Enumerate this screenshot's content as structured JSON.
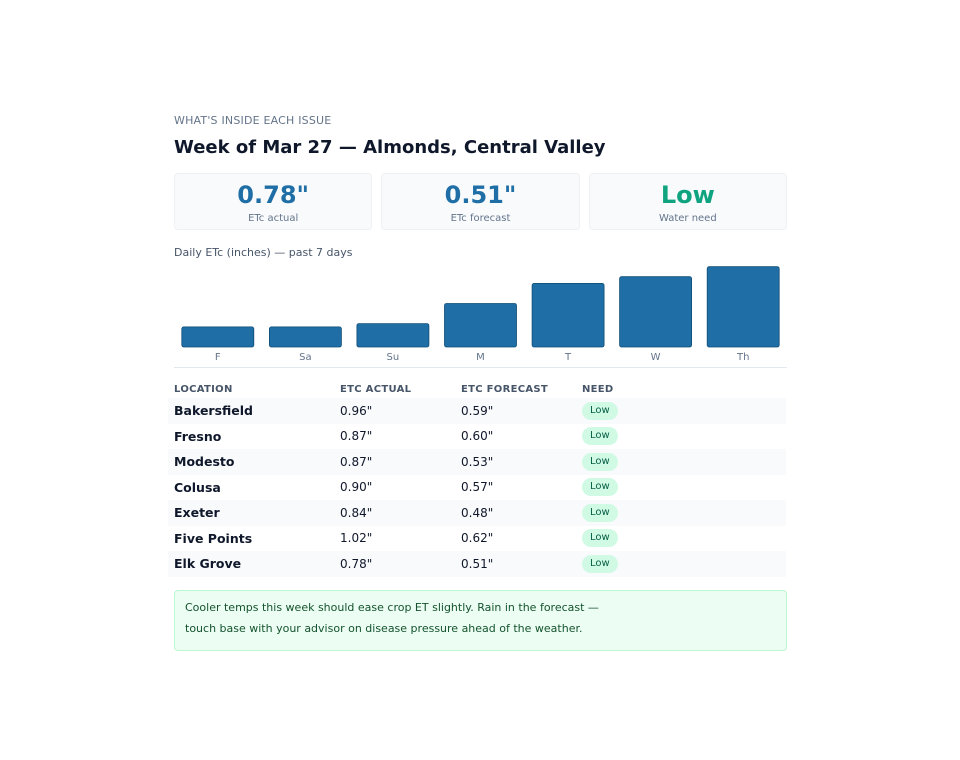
{
  "eyebrow": "WHAT'S INSIDE EACH ISSUE",
  "title": "Week of Mar 27 — Almonds, Central Valley",
  "stats": [
    {
      "value": "0.78\"",
      "label": "ETc actual",
      "color": "#1f6ea6"
    },
    {
      "value": "0.51\"",
      "label": "ETc forecast",
      "color": "#1f6ea6"
    },
    {
      "value": "Low",
      "label": "Water need",
      "color": "#10a37f"
    }
  ],
  "chart_caption": "Daily ETc (inches) — past 7 days",
  "chart_data": {
    "type": "bar",
    "categories": [
      "F",
      "Sa",
      "Su",
      "M",
      "T",
      "W",
      "Th"
    ],
    "values": [
      0.06,
      0.06,
      0.07,
      0.13,
      0.19,
      0.21,
      0.24
    ],
    "ylim": [
      0,
      0.26
    ],
    "color": "#1f6ea6"
  },
  "table": {
    "headers": [
      "LOCATION",
      "ETC ACTUAL",
      "ETC FORECAST",
      "NEED"
    ],
    "rows": [
      {
        "location": "Bakersfield",
        "actual": "0.96\"",
        "forecast": "0.59\"",
        "need": "Low"
      },
      {
        "location": "Fresno",
        "actual": "0.87\"",
        "forecast": "0.60\"",
        "need": "Low"
      },
      {
        "location": "Modesto",
        "actual": "0.87\"",
        "forecast": "0.53\"",
        "need": "Low"
      },
      {
        "location": "Colusa",
        "actual": "0.90\"",
        "forecast": "0.57\"",
        "need": "Low"
      },
      {
        "location": "Exeter",
        "actual": "0.84\"",
        "forecast": "0.48\"",
        "need": "Low"
      },
      {
        "location": "Five Points",
        "actual": "1.02\"",
        "forecast": "0.62\"",
        "need": "Low"
      },
      {
        "location": "Elk Grove",
        "actual": "0.78\"",
        "forecast": "0.51\"",
        "need": "Low"
      }
    ]
  },
  "note": {
    "line1": "Cooler temps this week should ease crop ET slightly. Rain in the forecast —",
    "line2": "touch base with your advisor on disease pressure ahead of the weather."
  }
}
